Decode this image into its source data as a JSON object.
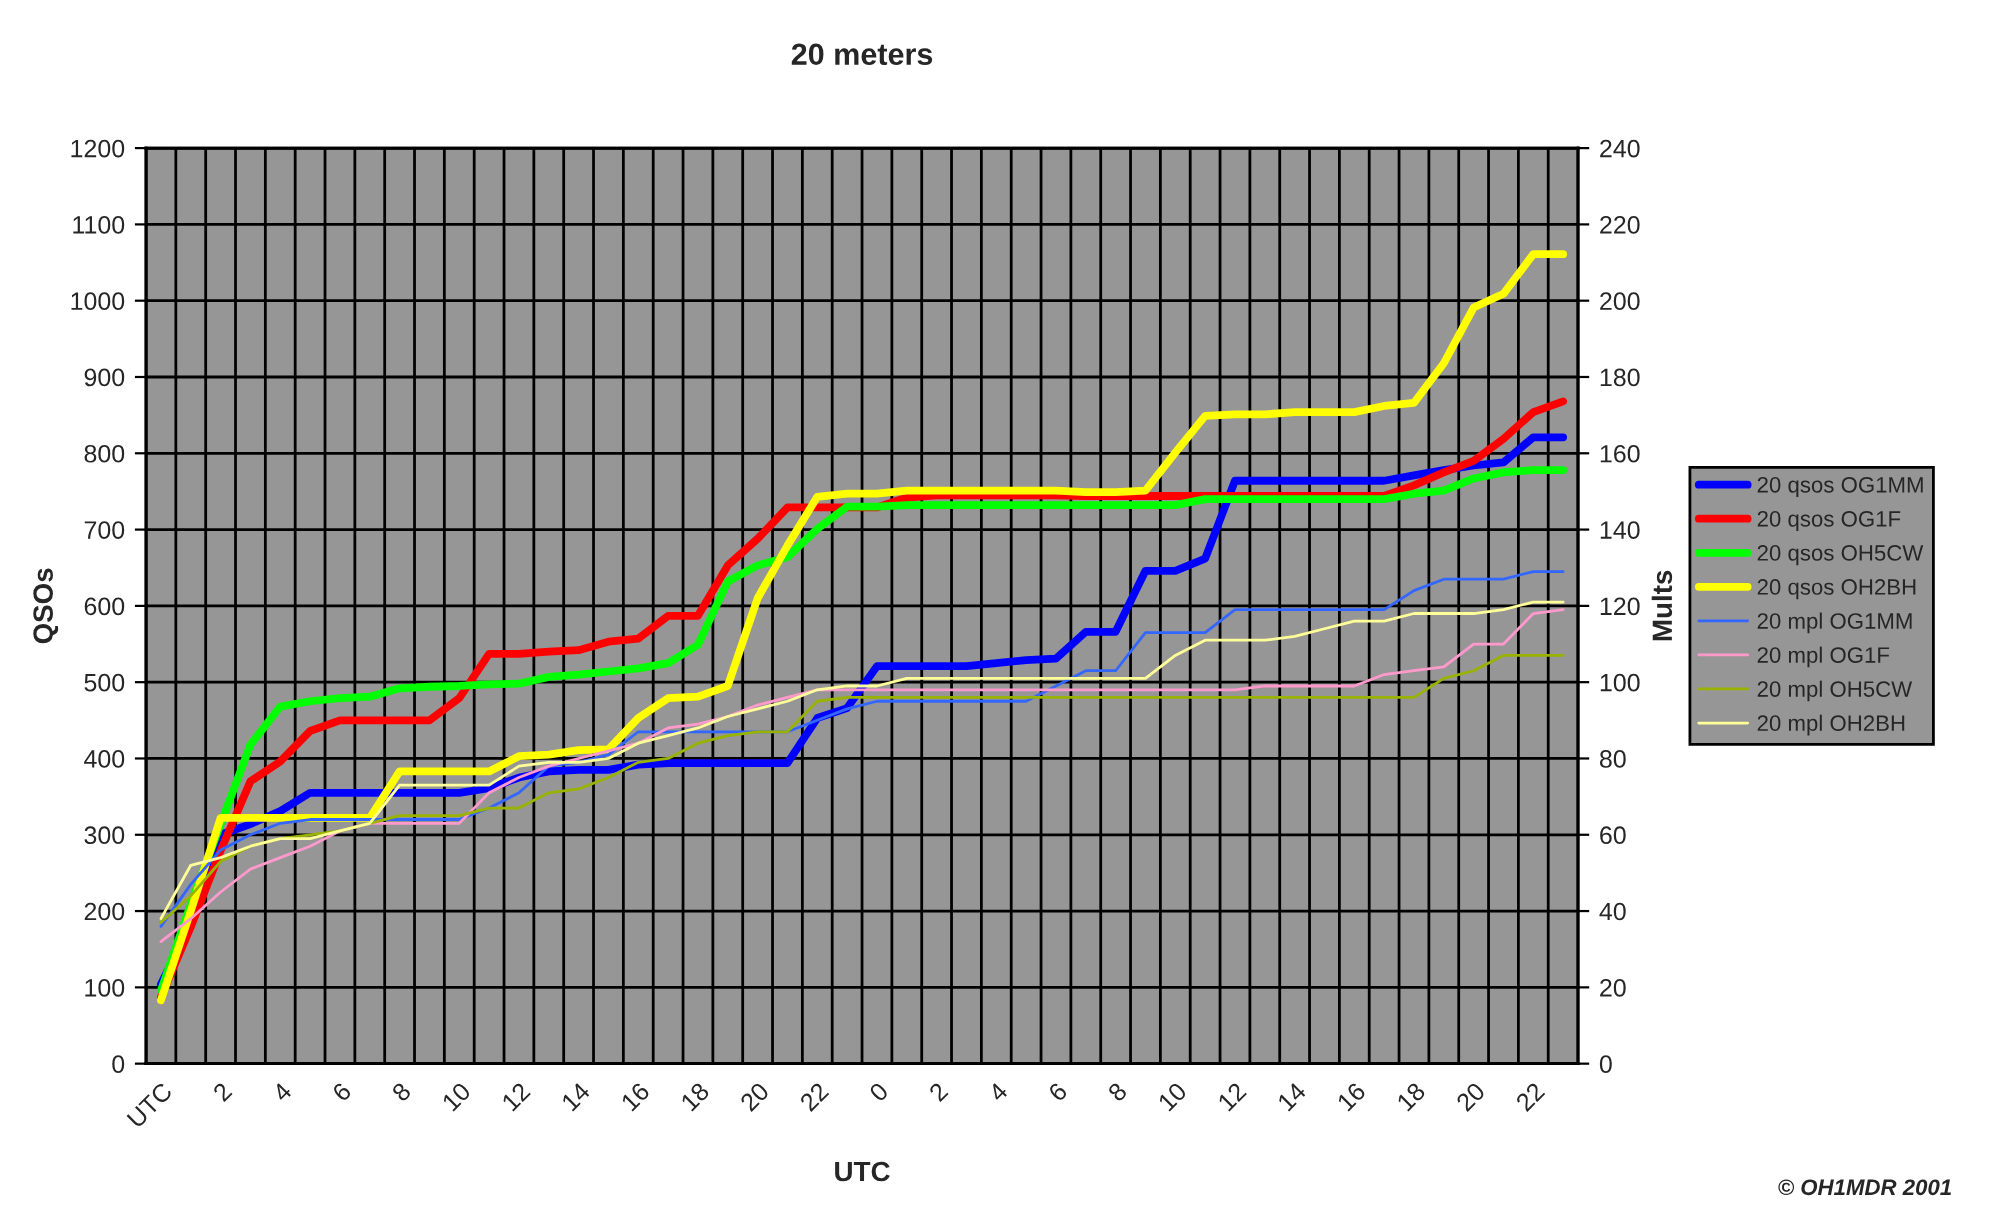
{
  "chart_data": {
    "type": "line",
    "title": "20 meters",
    "xlabel": "UTC",
    "ylabel": "QSOs",
    "y2label": "Mults",
    "categories": [
      "UTC",
      null,
      "2",
      null,
      "4",
      null,
      "6",
      null,
      "8",
      null,
      "10",
      null,
      "12",
      null,
      "14",
      null,
      "16",
      null,
      "18",
      null,
      "20",
      null,
      "22",
      null,
      "0",
      null,
      "2",
      null,
      "4",
      null,
      "6",
      null,
      "8",
      null,
      "10",
      null,
      "12",
      null,
      "14",
      null,
      "16",
      null,
      "18",
      null,
      "20",
      null,
      "22",
      null
    ],
    "ylim": [
      0,
      1200
    ],
    "yticks": [
      0,
      100,
      200,
      300,
      400,
      500,
      600,
      700,
      800,
      900,
      1000,
      1100,
      1200
    ],
    "y2lim": [
      0,
      240
    ],
    "y2ticks": [
      0,
      20,
      40,
      60,
      80,
      100,
      120,
      140,
      160,
      180,
      200,
      220,
      240
    ],
    "grid": true,
    "legend": "right",
    "series": [
      {
        "name": "20 qsos OG1MM",
        "color": "#0000ff",
        "values": [
          104,
          183,
          300,
          314,
          331,
          355,
          355,
          355,
          355,
          355,
          355,
          361,
          375,
          383,
          385,
          385,
          392,
          394,
          394,
          394,
          394,
          394,
          453,
          466,
          521,
          521,
          521,
          521,
          525,
          529,
          531,
          566,
          566,
          646,
          646,
          662,
          764,
          764,
          764,
          764,
          764,
          764,
          771,
          778,
          784,
          788,
          821,
          821
        ]
      },
      {
        "name": "20 qsos OG1F",
        "color": "#ff0000",
        "values": [
          87,
          179,
          279,
          370,
          396,
          436,
          450,
          450,
          450,
          450,
          479,
          537,
          537,
          540,
          542,
          553,
          557,
          587,
          587,
          653,
          688,
          729,
          729,
          729,
          729,
          742,
          745,
          745,
          745,
          745,
          745,
          744,
          744,
          744,
          744,
          744,
          744,
          744,
          744,
          744,
          744,
          744,
          758,
          775,
          790,
          819,
          854,
          868
        ]
      },
      {
        "name": "20 qsos OH5CW",
        "color": "#00ff00",
        "values": [
          96,
          209,
          314,
          418,
          468,
          475,
          479,
          481,
          492,
          494,
          495,
          497,
          498,
          507,
          510,
          514,
          518,
          525,
          549,
          632,
          653,
          664,
          701,
          730,
          730,
          732,
          732,
          732,
          732,
          732,
          732,
          732,
          732,
          732,
          732,
          740,
          740,
          740,
          740,
          740,
          740,
          740,
          747,
          751,
          767,
          775,
          778,
          778
        ]
      },
      {
        "name": "20 qsos OH2BH",
        "color": "#ffff00",
        "values": [
          83,
          200,
          322,
          322,
          322,
          322,
          322,
          322,
          383,
          383,
          383,
          383,
          403,
          405,
          411,
          412,
          453,
          479,
          481,
          495,
          610,
          679,
          743,
          747,
          747,
          751,
          751,
          751,
          751,
          751,
          751,
          749,
          749,
          751,
          801,
          849,
          851,
          851,
          854,
          854,
          854,
          862,
          866,
          918,
          991,
          1009,
          1061,
          1061
        ]
      },
      {
        "name": "20 mpl OG1MM",
        "color": "#3366ff",
        "axis": "y2",
        "values": [
          36,
          47,
          56,
          60,
          63,
          64,
          64,
          64,
          64,
          64,
          64,
          67,
          71,
          78,
          79,
          81,
          87,
          87,
          87,
          87,
          87,
          87,
          90,
          93,
          95,
          95,
          95,
          95,
          95,
          95,
          99,
          103,
          103,
          113,
          113,
          113,
          119,
          119,
          119,
          119,
          119,
          119,
          124,
          127,
          127,
          127,
          129,
          129
        ]
      },
      {
        "name": "20 mpl OG1F",
        "color": "#ff99cc",
        "axis": "y2",
        "values": [
          32,
          38,
          45,
          51,
          54,
          57,
          61,
          63,
          63,
          63,
          63,
          71,
          75,
          78,
          80,
          82,
          84,
          88,
          89,
          91,
          94,
          96,
          98,
          98,
          98,
          98,
          98,
          98,
          98,
          98,
          98,
          98,
          98,
          98,
          98,
          98,
          98,
          99,
          99,
          99,
          99,
          102,
          103,
          104,
          110,
          110,
          118,
          119
        ]
      },
      {
        "name": "20 mpl OH5CW",
        "color": "#99b300",
        "axis": "y2",
        "values": [
          37,
          44,
          53,
          57,
          59,
          60,
          61,
          63,
          65,
          65,
          65,
          67,
          67,
          71,
          72,
          75,
          79,
          80,
          84,
          86,
          87,
          87,
          95,
          96,
          96,
          96,
          96,
          96,
          96,
          96,
          96,
          96,
          96,
          96,
          96,
          96,
          96,
          96,
          96,
          96,
          96,
          96,
          96,
          101,
          103,
          107,
          107,
          107
        ]
      },
      {
        "name": "20 mpl OH2BH",
        "color": "#ffff99",
        "axis": "y2",
        "values": [
          38,
          52,
          54,
          57,
          59,
          59,
          61,
          63,
          73,
          73,
          73,
          73,
          78,
          79,
          79,
          80,
          84,
          86,
          88,
          91,
          93,
          95,
          98,
          99,
          99,
          101,
          101,
          101,
          101,
          101,
          101,
          101,
          101,
          101,
          107,
          111,
          111,
          111,
          112,
          114,
          116,
          116,
          118,
          118,
          118,
          119,
          121,
          121
        ]
      }
    ],
    "annotations": [
      "© OH1MDR 2001"
    ]
  }
}
